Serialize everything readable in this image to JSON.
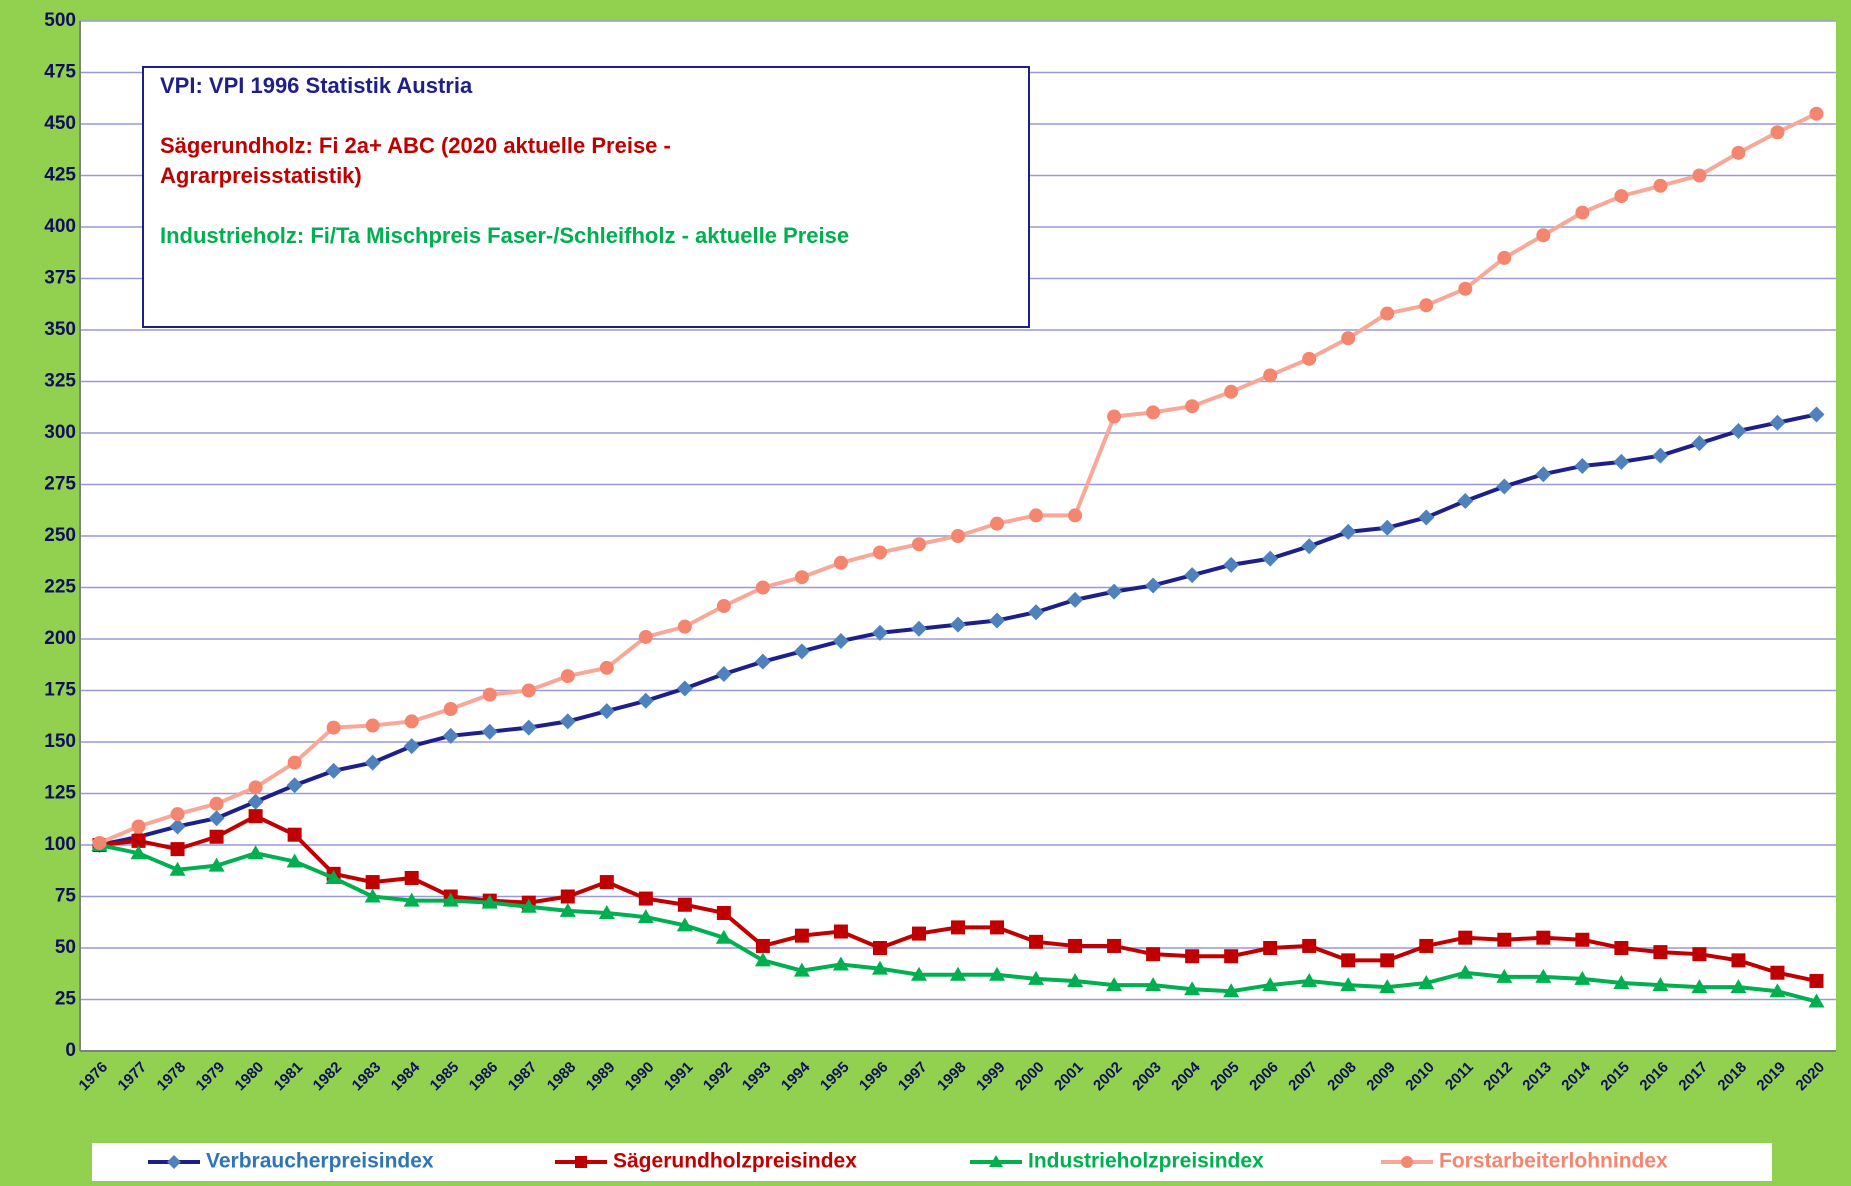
{
  "chart_data": {
    "type": "line",
    "categories": [
      "1976",
      "1977",
      "1978",
      "1979",
      "1980",
      "1981",
      "1982",
      "1983",
      "1984",
      "1985",
      "1986",
      "1987",
      "1988",
      "1989",
      "1990",
      "1991",
      "1992",
      "1993",
      "1994",
      "1995",
      "1996",
      "1997",
      "1998",
      "1999",
      "2000",
      "2001",
      "2002",
      "2003",
      "2004",
      "2005",
      "2006",
      "2007",
      "2008",
      "2009",
      "2010",
      "2011",
      "2012",
      "2013",
      "2014",
      "2015",
      "2016",
      "2017",
      "2018",
      "2019",
      "2020"
    ],
    "series": [
      {
        "name": "Verbraucherpreisindex",
        "color": "#1f1f8a",
        "marker_color": "#4f81bd",
        "marker": "diamond",
        "values": [
          100,
          104,
          109,
          113,
          121,
          129,
          136,
          140,
          148,
          153,
          155,
          157,
          160,
          165,
          170,
          176,
          183,
          189,
          194,
          199,
          203,
          205,
          207,
          209,
          213,
          219,
          223,
          226,
          231,
          236,
          239,
          245,
          252,
          254,
          259,
          267,
          274,
          280,
          284,
          286,
          289,
          295,
          301,
          305,
          309
        ]
      },
      {
        "name": "Sägerundholzpreisindex",
        "color": "#c00000",
        "marker_color": "#c00000",
        "marker": "square",
        "values": [
          100,
          102,
          98,
          104,
          114,
          105,
          86,
          82,
          84,
          75,
          73,
          72,
          75,
          82,
          74,
          71,
          67,
          51,
          56,
          58,
          50,
          57,
          60,
          60,
          53,
          51,
          51,
          47,
          46,
          46,
          50,
          51,
          44,
          44,
          51,
          55,
          54,
          55,
          54,
          50,
          48,
          47,
          44,
          38,
          34
        ]
      },
      {
        "name": "Industrieholzpreisindex",
        "color": "#00b050",
        "marker_color": "#00b050",
        "marker": "triangle",
        "values": [
          100,
          96,
          88,
          90,
          96,
          92,
          84,
          75,
          73,
          73,
          72,
          70,
          68,
          67,
          65,
          61,
          55,
          44,
          39,
          42,
          40,
          37,
          37,
          37,
          35,
          34,
          32,
          32,
          30,
          29,
          32,
          34,
          32,
          31,
          33,
          38,
          36,
          36,
          35,
          33,
          32,
          31,
          31,
          29,
          24
        ]
      },
      {
        "name": "Forstarbeiterlohnindex",
        "color": "#f8a898",
        "marker_color": "#f4866f",
        "marker": "circle",
        "values": [
          101,
          109,
          115,
          120,
          128,
          140,
          157,
          158,
          160,
          166,
          173,
          175,
          182,
          186,
          201,
          206,
          216,
          225,
          230,
          237,
          242,
          246,
          250,
          256,
          260,
          260,
          308,
          310,
          313,
          320,
          328,
          336,
          346,
          358,
          362,
          370,
          385,
          396,
          407,
          415,
          420,
          425,
          436,
          446,
          455
        ]
      }
    ],
    "ylim": [
      0,
      500
    ],
    "yticks": [
      0,
      25,
      50,
      75,
      100,
      125,
      150,
      175,
      200,
      225,
      250,
      275,
      300,
      325,
      350,
      375,
      400,
      425,
      450,
      475,
      500
    ],
    "grid": true,
    "legend": "bottom",
    "annotations": [
      {
        "lines": [
          "VPI: VPI 1996 Statistik Austria"
        ],
        "color": "#1f1f8a"
      },
      {
        "lines": [
          "Sägerundholz: Fi 2a+ ABC (2020 aktuelle Preise -",
          "Agrarpreisstatistik)"
        ],
        "color": "#c00000"
      },
      {
        "lines": [
          "Industrieholz: Fi/Ta Mischpreis Faser-/Schleifholz - aktuelle Preise"
        ],
        "color": "#00b050"
      }
    ]
  }
}
